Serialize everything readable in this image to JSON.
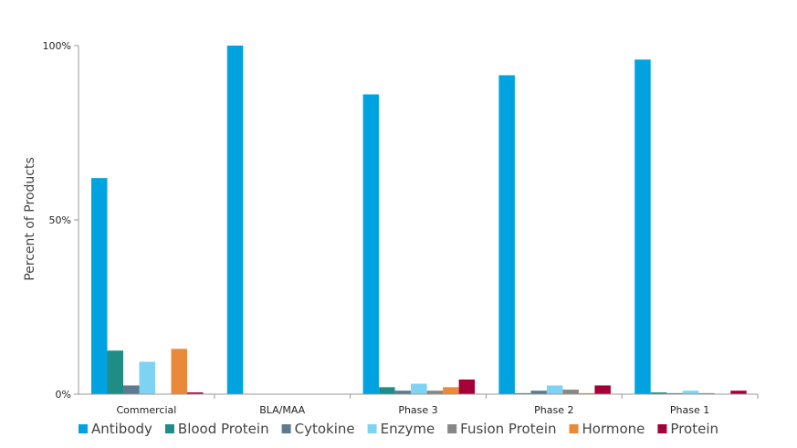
{
  "chart_data": {
    "type": "bar",
    "ylabel": "Percent of Products",
    "xlabel": "",
    "title": "",
    "ylim": [
      0,
      100
    ],
    "y_ticks": [
      {
        "value": 0,
        "label": "0%"
      },
      {
        "value": 50,
        "label": "50%"
      },
      {
        "value": 100,
        "label": "100%"
      }
    ],
    "grid": false,
    "legend_position": "bottom",
    "categories": [
      "Commercial",
      "BLA/MAA",
      "Phase 3",
      "Phase 2",
      "Phase 1"
    ],
    "series": [
      {
        "name": "Antibody",
        "color": "#00A3E0",
        "values": [
          62,
          100,
          86,
          91.5,
          96
        ]
      },
      {
        "name": "Blood Protein",
        "color": "#1F8C85",
        "values": [
          12.5,
          0,
          2,
          0.3,
          0.5
        ]
      },
      {
        "name": "Cytokine",
        "color": "#5E7A8F",
        "values": [
          2.5,
          0,
          1,
          1,
          0.3
        ]
      },
      {
        "name": "Enzyme",
        "color": "#7FD3F2",
        "values": [
          9.3,
          0,
          3,
          2.5,
          1
        ]
      },
      {
        "name": "Fusion Protein",
        "color": "#878787",
        "values": [
          0,
          0,
          1,
          1.3,
          0.3
        ]
      },
      {
        "name": "Hormone",
        "color": "#E88A3A",
        "values": [
          13,
          0,
          2,
          0.3,
          0
        ]
      },
      {
        "name": "Protein",
        "color": "#A3003A",
        "values": [
          0.5,
          0,
          4.2,
          2.5,
          1
        ]
      }
    ]
  }
}
